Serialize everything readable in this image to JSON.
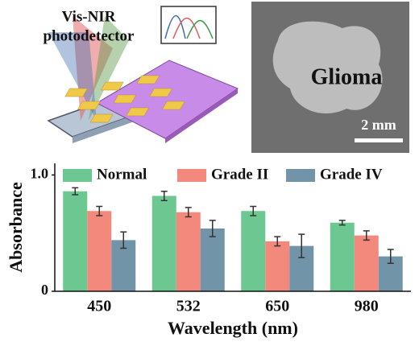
{
  "header": {
    "device_label": [
      "Vis-NIR",
      "photodetector"
    ],
    "image_label": "Glioma",
    "scale_bar": "2 mm"
  },
  "chart_data": {
    "type": "bar",
    "categories": [
      "450",
      "532",
      "650",
      "980"
    ],
    "series": [
      {
        "name": "Normal",
        "color": "#6cc890",
        "values": [
          0.86,
          0.82,
          0.69,
          0.59
        ],
        "errors": [
          0.03,
          0.04,
          0.04,
          0.02
        ]
      },
      {
        "name": "Grade II",
        "color": "#f2897c",
        "values": [
          0.69,
          0.68,
          0.43,
          0.48
        ],
        "errors": [
          0.04,
          0.04,
          0.04,
          0.04
        ]
      },
      {
        "name": "Grade IV",
        "color": "#7194a9",
        "values": [
          0.44,
          0.54,
          0.39,
          0.3
        ],
        "errors": [
          0.07,
          0.07,
          0.1,
          0.06
        ]
      }
    ],
    "xlabel": "Wavelength (nm)",
    "ylabel": "Absorbance",
    "ylim": [
      0,
      1.1
    ],
    "yticks": [
      0,
      {
        "value": 1,
        "label": "1.0"
      }
    ],
    "legend": "top",
    "grid": false
  }
}
